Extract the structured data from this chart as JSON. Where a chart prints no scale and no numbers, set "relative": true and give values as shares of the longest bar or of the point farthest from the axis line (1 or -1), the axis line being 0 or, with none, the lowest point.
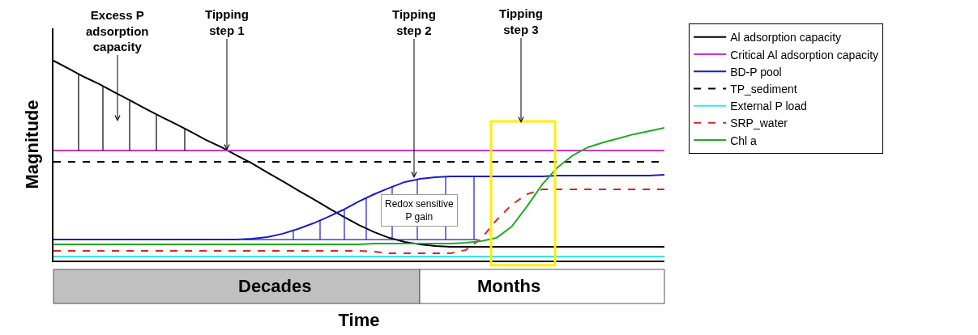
{
  "chart_data": {
    "type": "line",
    "relative": true,
    "xlabel": "Time",
    "ylabel": "Magnitude",
    "legend": "top right",
    "grid": false,
    "categories": [
      null,
      null,
      null,
      null,
      null,
      null,
      null,
      null,
      null,
      null,
      null,
      null,
      null,
      null,
      null,
      null,
      null,
      null,
      null,
      null,
      null,
      null,
      null,
      null,
      null,
      null,
      null,
      null,
      null,
      null,
      null,
      null,
      null,
      null,
      null,
      null,
      null,
      null,
      null,
      null,
      null
    ],
    "series": [
      {
        "name": "Al adsorption capacity",
        "color": "#000000",
        "line_style": "solid",
        "values": [
          1.0,
          0.96,
          0.919,
          0.883,
          0.842,
          0.802,
          0.761,
          0.721,
          0.684,
          0.644,
          0.603,
          0.567,
          0.526,
          0.486,
          0.441,
          0.397,
          0.352,
          0.308,
          0.263,
          0.219,
          0.178,
          0.142,
          0.113,
          0.093,
          0.081,
          0.073,
          0.069,
          0.069,
          0.069,
          0.069,
          0.069,
          0.069,
          0.069,
          0.069,
          0.069,
          0.069,
          0.069,
          0.069,
          0.069,
          0.069,
          0.069
        ]
      },
      {
        "name": "Critical Al adsorption capacity",
        "color": "#cc33cc",
        "line_style": "solid",
        "values": [
          0.551,
          0.551,
          0.551,
          0.551,
          0.551,
          0.551,
          0.551,
          0.551,
          0.551,
          0.551,
          0.551,
          0.551,
          0.551,
          0.551,
          0.551,
          0.551,
          0.551,
          0.551,
          0.551,
          0.551,
          0.551,
          0.551,
          0.551,
          0.551,
          0.551,
          0.551,
          0.551,
          0.551,
          0.551,
          0.551,
          0.551,
          0.551,
          0.551,
          0.551,
          0.551,
          0.551,
          0.551,
          0.551,
          0.551,
          0.551,
          0.551
        ]
      },
      {
        "name": "BD-P pool",
        "color": "#1a1acc",
        "line_style": "solid",
        "values": [
          0.105,
          0.105,
          0.105,
          0.105,
          0.105,
          0.105,
          0.105,
          0.105,
          0.105,
          0.105,
          0.105,
          0.105,
          0.105,
          0.109,
          0.117,
          0.134,
          0.158,
          0.186,
          0.219,
          0.255,
          0.296,
          0.332,
          0.364,
          0.393,
          0.409,
          0.417,
          0.421,
          0.421,
          0.421,
          0.421,
          0.421,
          0.421,
          0.421,
          0.425,
          0.425,
          0.425,
          0.425,
          0.425,
          0.425,
          0.425,
          0.429
        ]
      },
      {
        "name": "TP_sediment",
        "color": "#000000",
        "line_style": "dashed",
        "values": [
          0.494,
          0.494,
          0.494,
          0.494,
          0.494,
          0.494,
          0.494,
          0.494,
          0.494,
          0.494,
          0.494,
          0.494,
          0.494,
          0.494,
          0.494,
          0.494,
          0.494,
          0.494,
          0.494,
          0.494,
          0.494,
          0.494,
          0.494,
          0.494,
          0.494,
          0.494,
          0.494,
          0.494,
          0.494,
          0.494,
          0.494,
          0.494,
          0.494,
          0.494,
          0.494,
          0.494,
          0.494,
          0.494,
          0.494,
          0.494,
          0.494
        ]
      },
      {
        "name": "External P load",
        "color": "#33e6e6",
        "line_style": "solid",
        "values": [
          0.02,
          0.02,
          0.02,
          0.02,
          0.02,
          0.02,
          0.02,
          0.02,
          0.02,
          0.02,
          0.02,
          0.02,
          0.02,
          0.02,
          0.02,
          0.02,
          0.02,
          0.02,
          0.02,
          0.02,
          0.02,
          0.02,
          0.02,
          0.02,
          0.02,
          0.02,
          0.02,
          0.02,
          0.02,
          0.02,
          0.02,
          0.02,
          0.02,
          0.02,
          0.02,
          0.02,
          0.02,
          0.02,
          0.02,
          0.02,
          0.02
        ]
      },
      {
        "name": "SRP_water",
        "color": "#dd2222",
        "line_style": "dashed",
        "values": [
          0.049,
          0.049,
          0.049,
          0.049,
          0.049,
          0.049,
          0.049,
          0.049,
          0.049,
          0.049,
          0.049,
          0.049,
          0.049,
          0.049,
          0.049,
          0.049,
          0.049,
          0.049,
          0.049,
          0.049,
          0.049,
          0.045,
          0.036,
          0.036,
          0.036,
          0.036,
          0.036,
          0.053,
          0.109,
          0.202,
          0.279,
          0.332,
          0.356,
          0.356,
          0.356,
          0.356,
          0.356,
          0.356,
          0.356,
          0.356,
          0.356
        ]
      },
      {
        "name": "Chl a",
        "color": "#22aa22",
        "line_style": "solid",
        "values": [
          0.081,
          0.081,
          0.081,
          0.081,
          0.081,
          0.081,
          0.081,
          0.081,
          0.081,
          0.081,
          0.081,
          0.081,
          0.081,
          0.081,
          0.081,
          0.081,
          0.081,
          0.081,
          0.081,
          0.081,
          0.081,
          0.085,
          0.085,
          0.085,
          0.085,
          0.085,
          0.085,
          0.089,
          0.097,
          0.113,
          0.17,
          0.271,
          0.381,
          0.466,
          0.526,
          0.567,
          0.591,
          0.611,
          0.632,
          0.648,
          0.664
        ]
      }
    ],
    "annotations": [
      "Excess P adsorption capacity",
      "Tipping step 1",
      "Tipping step 2",
      "Tipping step 3",
      "Redox sensitive P gain",
      "Decades",
      "Months"
    ]
  }
}
